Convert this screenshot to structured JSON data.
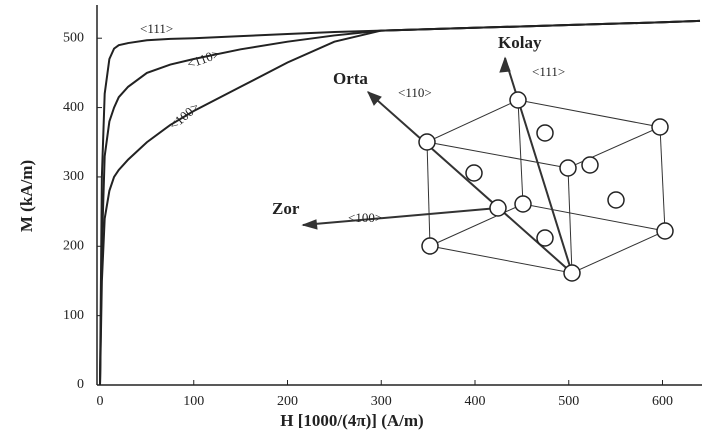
{
  "chart_data": {
    "type": "line",
    "x_label": "H [1000/(4π)] (A/m)",
    "y_label": "M (kA/m)",
    "x": [
      0,
      2,
      5,
      10,
      15,
      20,
      30,
      50,
      75,
      100,
      150,
      200,
      250,
      300,
      400,
      500,
      600,
      640
    ],
    "series": [
      {
        "name": "<111>",
        "color": "#222222",
        "values": [
          0,
          300,
          420,
          470,
          485,
          490,
          493,
          497,
          499,
          500,
          503,
          506,
          509,
          511,
          515,
          519,
          523,
          525
        ]
      },
      {
        "name": "<110>",
        "color": "#222222",
        "values": [
          0,
          200,
          330,
          380,
          400,
          415,
          430,
          450,
          462,
          470,
          484,
          495,
          504,
          511,
          515,
          519,
          523,
          525
        ]
      },
      {
        "name": "<100>",
        "color": "#222222",
        "values": [
          0,
          150,
          240,
          280,
          300,
          310,
          325,
          350,
          375,
          395,
          430,
          465,
          495,
          511,
          515,
          519,
          523,
          525
        ]
      }
    ],
    "xlim": [
      0,
      640
    ],
    "ylim": [
      0,
      545
    ],
    "xticks": [
      0,
      100,
      200,
      300,
      400,
      500,
      600
    ],
    "yticks": [
      0,
      100,
      200,
      300,
      400,
      500
    ],
    "annotations": [
      "Kolay",
      "<111>",
      "Orta",
      "<110>",
      "Zor",
      "<100>"
    ]
  }
}
